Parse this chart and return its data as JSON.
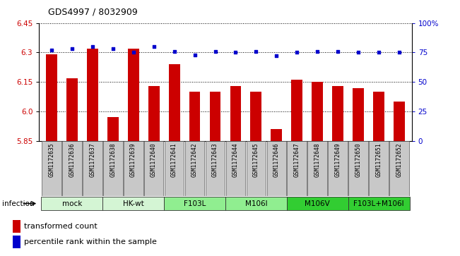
{
  "title": "GDS4997 / 8032909",
  "samples": [
    "GSM1172635",
    "GSM1172636",
    "GSM1172637",
    "GSM1172638",
    "GSM1172639",
    "GSM1172640",
    "GSM1172641",
    "GSM1172642",
    "GSM1172643",
    "GSM1172644",
    "GSM1172645",
    "GSM1172646",
    "GSM1172647",
    "GSM1172648",
    "GSM1172649",
    "GSM1172650",
    "GSM1172651",
    "GSM1172652"
  ],
  "bar_values": [
    6.29,
    6.17,
    6.32,
    5.97,
    6.32,
    6.13,
    6.24,
    6.1,
    6.1,
    6.13,
    6.1,
    5.91,
    6.16,
    6.15,
    6.13,
    6.12,
    6.1,
    6.05
  ],
  "dot_values": [
    77,
    78,
    80,
    78,
    75,
    80,
    76,
    73,
    76,
    75,
    76,
    72,
    75,
    76,
    76,
    75,
    75,
    75
  ],
  "ylim_left": [
    5.85,
    6.45
  ],
  "ylim_right": [
    0,
    100
  ],
  "yticks_left": [
    5.85,
    6.0,
    6.15,
    6.3,
    6.45
  ],
  "yticks_right": [
    0,
    25,
    50,
    75,
    100
  ],
  "ytick_labels_right": [
    "0",
    "25",
    "50",
    "75",
    "100%"
  ],
  "groups": [
    {
      "label": "mock",
      "start": 0,
      "end": 2,
      "color": "#d4f5d4"
    },
    {
      "label": "HK-wt",
      "start": 3,
      "end": 5,
      "color": "#d4f5d4"
    },
    {
      "label": "F103L",
      "start": 6,
      "end": 8,
      "color": "#90ee90"
    },
    {
      "label": "M106I",
      "start": 9,
      "end": 11,
      "color": "#90ee90"
    },
    {
      "label": "M106V",
      "start": 12,
      "end": 14,
      "color": "#32cd32"
    },
    {
      "label": "F103L+M106I",
      "start": 15,
      "end": 17,
      "color": "#32cd32"
    }
  ],
  "bar_color": "#cc0000",
  "dot_color": "#0000cc",
  "infection_label": "infection",
  "legend_bar": "transformed count",
  "legend_dot": "percentile rank within the sample",
  "xlabel_color": "#cc0000",
  "ylabel_right_color": "#0000cc",
  "gray_box_color": "#c8c8c8"
}
